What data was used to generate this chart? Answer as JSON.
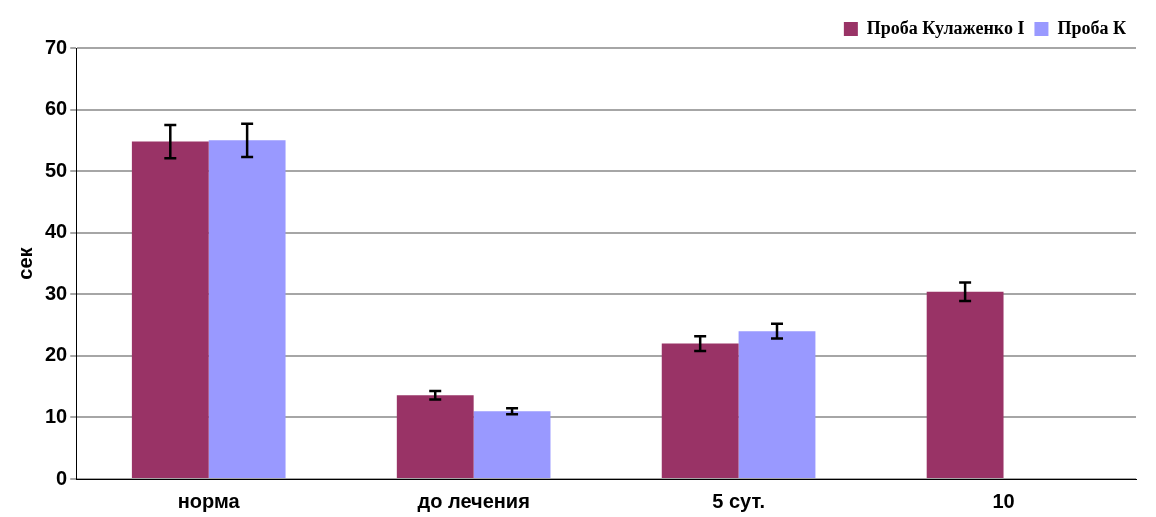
{
  "chart_data": {
    "type": "bar",
    "ylabel": "сек",
    "categories": [
      "норма",
      "до лечения",
      "5 сут.",
      "10"
    ],
    "series": [
      {
        "name": "Проба Кулаженко I",
        "color": "#993366",
        "values": [
          54.8,
          13.6,
          22,
          30.4
        ],
        "errors": [
          2.7,
          0.7,
          1.2,
          1.5
        ]
      },
      {
        "name": "Проба К",
        "color": "#9999ff",
        "values": [
          55,
          11,
          24,
          null
        ],
        "errors": [
          2.7,
          0.5,
          1.2,
          null
        ]
      }
    ],
    "ylim": [
      0,
      70
    ],
    "yticks": [
      0,
      10,
      20,
      30,
      40,
      50,
      60,
      70
    ],
    "grid": "y",
    "legend": "top right"
  }
}
